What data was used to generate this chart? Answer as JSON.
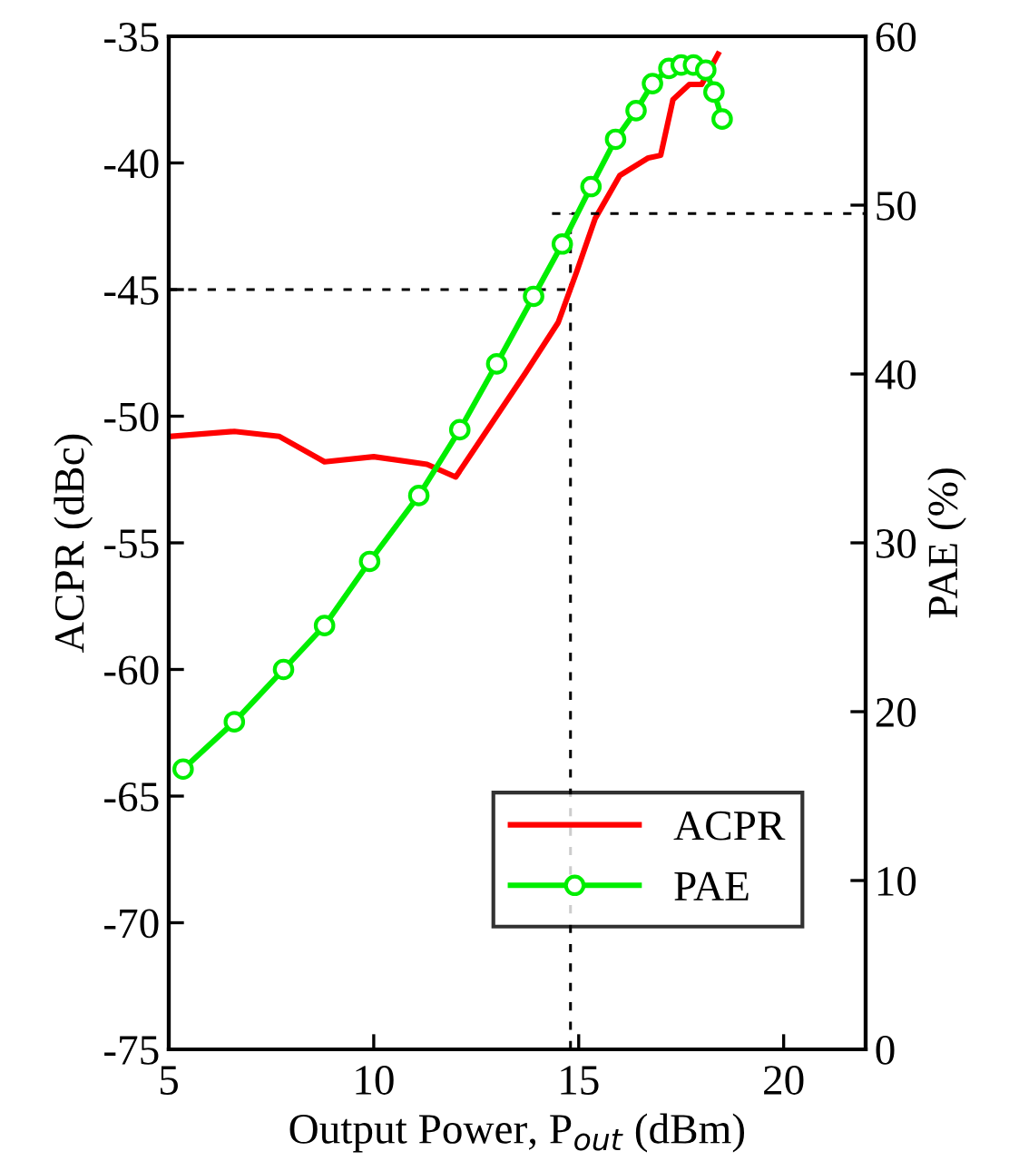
{
  "chart_data": {
    "type": "line",
    "xlabel": "Output Power, P$_{out}$ (dBm)",
    "ylabel": "ACPR (dBc)",
    "y2label": "PAE (%)",
    "xlim": [
      5,
      22
    ],
    "xticks": [
      5,
      10,
      15,
      20
    ],
    "ylim": [
      -75,
      -35
    ],
    "yticks": [
      -75,
      -70,
      -65,
      -60,
      -55,
      -50,
      -45,
      -40,
      -35
    ],
    "y2lim": [
      0,
      60
    ],
    "y2ticks": [
      0,
      10,
      20,
      30,
      40,
      50,
      60
    ],
    "series": [
      {
        "name": "ACPR",
        "color": "#ff0000",
        "marker": "none",
        "x": [
          5,
          6.6,
          7.7,
          8.8,
          10,
          11.3,
          12,
          13.7,
          14.5,
          14.95,
          15.4,
          16,
          16.7,
          17,
          17.3,
          17.7,
          18,
          18.4
        ],
        "values": [
          -50.8,
          -50.6,
          -50.8,
          -51.8,
          -51.6,
          -51.9,
          -52.4,
          -48.3,
          -46.3,
          -44.3,
          -42.2,
          -40.5,
          -39.8,
          -39.7,
          -37.5,
          -36.9,
          -36.9,
          -35.7
        ]
      },
      {
        "name": "PAE",
        "color": "#00ee00",
        "axis": "y2",
        "marker": "circle",
        "x": [
          5.35,
          6.6,
          7.8,
          8.8,
          9.9,
          11.1,
          12.1,
          13,
          13.9,
          14.6,
          15.3,
          15.9,
          16.4,
          16.8,
          17.2,
          17.5,
          17.8,
          18.1,
          18.3,
          18.5
        ],
        "values": [
          16.6,
          19.4,
          22.5,
          25.1,
          28.9,
          32.8,
          36.7,
          40.6,
          44.6,
          47.7,
          51.1,
          53.9,
          55.6,
          57.2,
          58.1,
          58.3,
          58.3,
          58,
          56.7,
          55.1
        ]
      }
    ],
    "ref_lines": [
      {
        "axis": "y",
        "value": -45,
        "line_style": "dashed",
        "color": "#000000"
      },
      {
        "axis": "x",
        "value": 14.8,
        "line_style": "dashed",
        "color": "#000000"
      },
      {
        "axis": "y2",
        "value": 49.5,
        "line_style": "dashed",
        "color": "#000000"
      }
    ],
    "legend": "bottom right",
    "grid": false
  }
}
